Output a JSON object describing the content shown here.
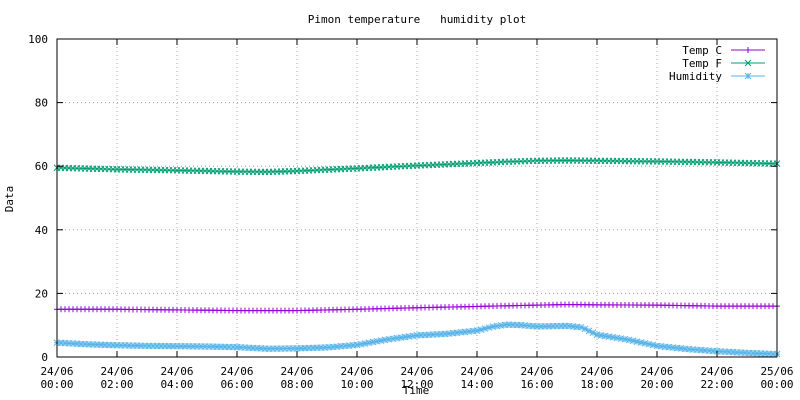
{
  "chart_data": {
    "type": "line",
    "title": "Pimon temperature   humidity plot",
    "xlabel": "Time",
    "ylabel": "Data",
    "ylim": [
      0,
      100
    ],
    "yticks": [
      0,
      20,
      40,
      60,
      80,
      100
    ],
    "xlim": [
      "2024-06-24 00:00",
      "2024-06-25 00:00"
    ],
    "xticks": [
      {
        "line1": "24/06",
        "line2": "00:00",
        "hour": 0
      },
      {
        "line1": "24/06",
        "line2": "02:00",
        "hour": 2
      },
      {
        "line1": "24/06",
        "line2": "04:00",
        "hour": 4
      },
      {
        "line1": "24/06",
        "line2": "06:00",
        "hour": 6
      },
      {
        "line1": "24/06",
        "line2": "08:00",
        "hour": 8
      },
      {
        "line1": "24/06",
        "line2": "10:00",
        "hour": 10
      },
      {
        "line1": "24/06",
        "line2": "12:00",
        "hour": 12
      },
      {
        "line1": "24/06",
        "line2": "14:00",
        "hour": 14
      },
      {
        "line1": "24/06",
        "line2": "16:00",
        "hour": 16
      },
      {
        "line1": "24/06",
        "line2": "18:00",
        "hour": 18
      },
      {
        "line1": "24/06",
        "line2": "20:00",
        "hour": 20
      },
      {
        "line1": "24/06",
        "line2": "22:00",
        "hour": 22
      },
      {
        "line1": "25/06",
        "line2": "00:00",
        "hour": 24
      }
    ],
    "grid": true,
    "legend_position": "top-right",
    "series": [
      {
        "name": "Temp C",
        "color": "#9400d3",
        "marker": "plus",
        "hours": [
          0,
          2,
          4,
          6,
          8,
          10,
          12,
          14,
          15,
          16,
          17,
          18,
          20,
          22,
          24
        ],
        "values": [
          15.0,
          15.0,
          14.8,
          14.6,
          14.6,
          15.0,
          15.5,
          15.9,
          16.1,
          16.3,
          16.5,
          16.4,
          16.3,
          16.0,
          16.0
        ]
      },
      {
        "name": "Temp F",
        "color": "#009e73",
        "marker": "cross",
        "hours": [
          0,
          2,
          4,
          6,
          7,
          8,
          10,
          12,
          14,
          15,
          16,
          17,
          18,
          20,
          22,
          24
        ],
        "values": [
          59.5,
          59.0,
          58.7,
          58.3,
          58.2,
          58.5,
          59.3,
          60.2,
          61.0,
          61.4,
          61.7,
          61.8,
          61.7,
          61.5,
          61.2,
          60.8
        ]
      },
      {
        "name": "Humidity",
        "color": "#56b4e9",
        "marker": "star",
        "hours": [
          0,
          1,
          2,
          3,
          4,
          5,
          6,
          7,
          8,
          9,
          10,
          11,
          12,
          13,
          14,
          14.5,
          15,
          15.5,
          16,
          16.5,
          17,
          17.5,
          18,
          19,
          20,
          21,
          22,
          23,
          24
        ],
        "values": [
          4.5,
          4.0,
          3.7,
          3.5,
          3.4,
          3.3,
          3.1,
          2.6,
          2.7,
          3.0,
          3.8,
          5.5,
          6.8,
          7.3,
          8.3,
          9.5,
          10.2,
          10.0,
          9.6,
          9.7,
          9.8,
          9.3,
          7.0,
          5.5,
          3.5,
          2.5,
          1.8,
          1.3,
          0.9
        ]
      }
    ]
  }
}
